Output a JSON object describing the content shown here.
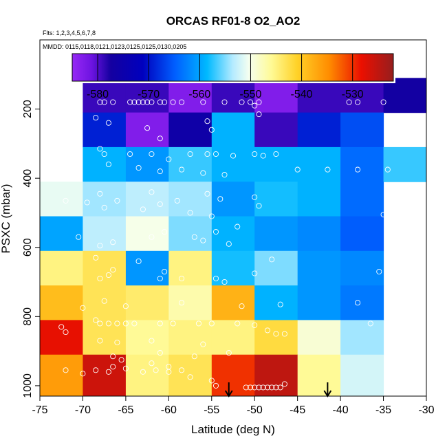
{
  "chart_data": {
    "type": "heatmap",
    "title": "ORCAS RF01-8 O2_AO2",
    "flights_note": "Flts: 1,2,3,4,5,6,7,8",
    "dates_note": "MMDD: 0115,0118,0121,0123,0125,0125,0130,0205",
    "xlabel": "Latitude (deg N)",
    "ylabel": "PSXC (mbar)",
    "xlim": [
      -75,
      -30
    ],
    "ylim": [
      1030,
      0
    ],
    "x_ticks": [
      -75,
      -70,
      -65,
      -60,
      -55,
      -50,
      -45,
      -40,
      -35,
      -30
    ],
    "x_tick_labels": [
      "-75",
      "-70",
      "-65",
      "-60",
      "-55",
      "-50",
      "-45",
      "-40",
      "-35",
      "-30"
    ],
    "y_ticks": [
      200,
      400,
      600,
      800,
      1000
    ],
    "y_tick_labels": [
      "200",
      "400",
      "600",
      "800",
      "1000"
    ],
    "colorbar": {
      "range": [
        -585,
        -522
      ],
      "ticks": [
        -580,
        -570,
        -560,
        -550,
        -540,
        -530
      ],
      "tick_labels": [
        "-580",
        "-570",
        "-560",
        "-550",
        "-540",
        "-530"
      ]
    },
    "lat_bin_edges": [
      -75,
      -70,
      -65,
      -60,
      -55,
      -50,
      -45,
      -40,
      -35,
      -30
    ],
    "pressure_bin_edges": [
      110,
      210,
      310,
      410,
      510,
      610,
      710,
      810,
      910,
      1030
    ],
    "cells": [
      [
        null,
        -579,
        -579,
        -583,
        -579,
        -583,
        -579,
        -579,
        -577
      ],
      [
        null,
        -569,
        -583,
        -576,
        -559,
        -579,
        -569,
        -566,
        null
      ],
      [
        null,
        -559,
        -561,
        -557,
        -559,
        -559,
        -559,
        -564,
        -557
      ],
      [
        -551,
        -554,
        -553,
        -554,
        -561,
        -558,
        -559,
        -564,
        null
      ],
      [
        -560,
        -553,
        -550,
        -555,
        -559,
        -561,
        -562,
        -565,
        null
      ],
      [
        -545,
        -543,
        -561,
        -545,
        -558,
        -555,
        -561,
        -562,
        null
      ],
      [
        -539,
        -543,
        -544,
        -547,
        -538,
        -559,
        -561,
        -563,
        null
      ],
      [
        -528,
        -543,
        -546,
        -545,
        -545,
        -542,
        -549,
        -554,
        null
      ],
      [
        -536,
        -526,
        -545,
        -543,
        -530,
        -525,
        -546,
        -552,
        null
      ]
    ],
    "arrows_latitude": [
      -53,
      -41.5
    ],
    "observations": [
      [
        -68,
        180
      ],
      [
        -67.5,
        180
      ],
      [
        -66.5,
        180
      ],
      [
        -64.5,
        180
      ],
      [
        -64,
        180
      ],
      [
        -63.5,
        180
      ],
      [
        -63,
        180
      ],
      [
        -62.5,
        180
      ],
      [
        -62,
        180
      ],
      [
        -61,
        180
      ],
      [
        -60.5,
        180
      ],
      [
        -59.5,
        180
      ],
      [
        -58.5,
        180
      ],
      [
        -56,
        180
      ],
      [
        -53.5,
        180
      ],
      [
        -51.5,
        180
      ],
      [
        -50.5,
        180
      ],
      [
        -49.5,
        180
      ],
      [
        -39,
        180
      ],
      [
        -38,
        180
      ],
      [
        -35,
        180
      ],
      [
        -68.5,
        225
      ],
      [
        -67,
        240
      ],
      [
        -62.5,
        255
      ],
      [
        -61,
        285
      ],
      [
        -55.5,
        235
      ],
      [
        -55,
        260
      ],
      [
        -50,
        190
      ],
      [
        -49.5,
        215
      ],
      [
        -68,
        315
      ],
      [
        -67.5,
        330
      ],
      [
        -64.5,
        330
      ],
      [
        -62,
        330
      ],
      [
        -60,
        345
      ],
      [
        -57.5,
        330
      ],
      [
        -55.5,
        330
      ],
      [
        -54.5,
        330
      ],
      [
        -52.5,
        335
      ],
      [
        -50,
        330
      ],
      [
        -49,
        335
      ],
      [
        -47.5,
        330
      ],
      [
        -45,
        375
      ],
      [
        -41.5,
        375
      ],
      [
        -38,
        375
      ],
      [
        -34.5,
        375
      ],
      [
        -67,
        360
      ],
      [
        -63.5,
        370
      ],
      [
        -61,
        380
      ],
      [
        -58.5,
        375
      ],
      [
        -56,
        385
      ],
      [
        -53.5,
        390
      ],
      [
        -72,
        465
      ],
      [
        -69.5,
        470
      ],
      [
        -68,
        445
      ],
      [
        -67.5,
        485
      ],
      [
        -66,
        465
      ],
      [
        -63,
        490
      ],
      [
        -62,
        440
      ],
      [
        -61,
        475
      ],
      [
        -59,
        465
      ],
      [
        -57.5,
        500
      ],
      [
        -55.5,
        445
      ],
      [
        -54,
        460
      ],
      [
        -50,
        455
      ],
      [
        -49.5,
        480
      ],
      [
        -35,
        505
      ],
      [
        -70.5,
        570
      ],
      [
        -68,
        595
      ],
      [
        -66.5,
        585
      ],
      [
        -62,
        570
      ],
      [
        -60.5,
        555
      ],
      [
        -57,
        570
      ],
      [
        -56,
        580
      ],
      [
        -54.5,
        555
      ],
      [
        -53,
        590
      ],
      [
        -52,
        540
      ],
      [
        -55,
        510
      ],
      [
        -68.5,
        630
      ],
      [
        -68,
        690
      ],
      [
        -67,
        680
      ],
      [
        -66.5,
        665
      ],
      [
        -63.5,
        640
      ],
      [
        -61,
        690
      ],
      [
        -60.5,
        670
      ],
      [
        -58.5,
        690
      ],
      [
        -54.5,
        690
      ],
      [
        -53.5,
        700
      ],
      [
        -50,
        675
      ],
      [
        -48,
        635
      ],
      [
        -35.5,
        670
      ],
      [
        -70,
        775
      ],
      [
        -67.5,
        755
      ],
      [
        -65,
        770
      ],
      [
        -58.5,
        760
      ],
      [
        -51.5,
        770
      ],
      [
        -47,
        765
      ],
      [
        -38,
        760
      ],
      [
        -36.5,
        820
      ],
      [
        -72.5,
        830
      ],
      [
        -72,
        845
      ],
      [
        -68.5,
        810
      ],
      [
        -68,
        820
      ],
      [
        -67,
        820
      ],
      [
        -66,
        820
      ],
      [
        -65,
        820
      ],
      [
        -64,
        820
      ],
      [
        -61,
        820
      ],
      [
        -59.5,
        820
      ],
      [
        -56.5,
        820
      ],
      [
        -55,
        820
      ],
      [
        -52,
        820
      ],
      [
        -50,
        825
      ],
      [
        -48.5,
        840
      ],
      [
        -47.5,
        850
      ],
      [
        -46.5,
        850
      ],
      [
        -68,
        870
      ],
      [
        -66,
        875
      ],
      [
        -62,
        870
      ],
      [
        -56,
        880
      ],
      [
        -72,
        955
      ],
      [
        -70,
        965
      ],
      [
        -68.5,
        955
      ],
      [
        -67,
        960
      ],
      [
        -66.5,
        945
      ],
      [
        -65,
        950
      ],
      [
        -63,
        960
      ],
      [
        -61.5,
        955
      ],
      [
        -60,
        960
      ],
      [
        -58.5,
        955
      ],
      [
        -57.5,
        975
      ],
      [
        -55,
        985
      ],
      [
        -54.5,
        1000
      ],
      [
        -51,
        1005
      ],
      [
        -50.5,
        1005
      ],
      [
        -50,
        1005
      ],
      [
        -49.5,
        1005
      ],
      [
        -49,
        1005
      ],
      [
        -48.5,
        1005
      ],
      [
        -48,
        1005
      ],
      [
        -47.5,
        1005
      ],
      [
        -47,
        1005
      ],
      [
        -46.5,
        995
      ],
      [
        -62,
        935
      ],
      [
        -60,
        945
      ],
      [
        -65.5,
        925
      ],
      [
        -66.5,
        915
      ],
      [
        -61,
        905
      ],
      [
        -57,
        915
      ],
      [
        -53,
        905
      ]
    ]
  }
}
